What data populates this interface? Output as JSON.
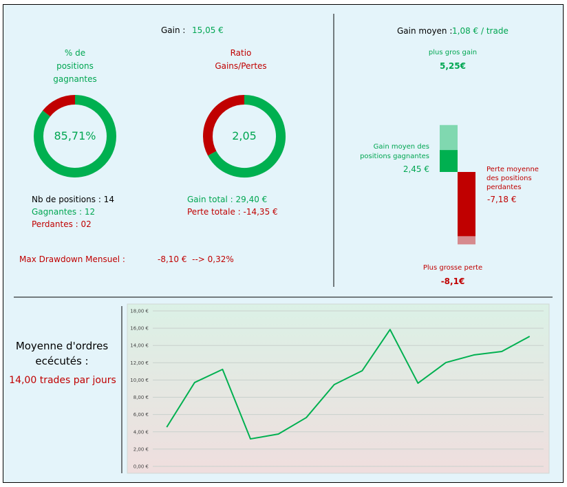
{
  "summary": {
    "gain_label": "Gain :",
    "gain_value": "15,05 €",
    "stats": [
      "Nb de positions : 14",
      "Gagnantes : 12",
      "Perdantes : 02",
      "Gain total : 29,40 €",
      "Perte totale : -14,35 €"
    ],
    "drawdown_label": "Max Drawdown Mensuel :",
    "drawdown_value": "-8,10 €  --> 0,32%",
    "avg_gain_label": "Gain moyen :",
    "avg_gain_value": "1,08 € / trade",
    "orders_label": "Moyenne d'ordres ecécutés :",
    "orders_value": "14,00 trades par jours"
  },
  "chart_data": [
    {
      "type": "pie",
      "donut": true,
      "title": [
        "% de",
        "positions",
        "gagnantes"
      ],
      "title_color": "#00a651",
      "center_label": "85,71%",
      "values": [
        85.71,
        14.29
      ],
      "colors": [
        "#00b050",
        "#c00000"
      ]
    },
    {
      "type": "pie",
      "donut": true,
      "title": [
        "Ratio",
        "Gains/Pertes"
      ],
      "title_color": "#c00000",
      "center_label": "2,05",
      "values": [
        67.2,
        32.8
      ],
      "colors": [
        "#00b050",
        "#c00000"
      ]
    },
    {
      "type": "floating_bar",
      "series": [
        {
          "name": "plus gros gain",
          "values": [
            5.25
          ],
          "value_labels": [
            "5,25€"
          ],
          "color": "#80d8b0"
        },
        {
          "name": "Gain moyen des positions gagnantes",
          "values": [
            2.45
          ],
          "value_labels": [
            "2,45 €"
          ],
          "color": "#00b050"
        },
        {
          "name": "Plus grosse perte",
          "values": [
            -8.1
          ],
          "value_labels": [
            "-8,1€"
          ],
          "color": "#d68a8e"
        },
        {
          "name": "Perte moyenne des positions perdantes",
          "values": [
            -7.18
          ],
          "value_labels": [
            "-7,18 €"
          ],
          "color": "#c00000"
        }
      ]
    },
    {
      "type": "line",
      "categories": [
        null,
        null,
        null,
        null,
        null,
        null,
        null,
        null,
        null,
        null,
        null,
        null,
        null,
        null
      ],
      "values": [
        4.54,
        9.71,
        11.23,
        3.18,
        3.74,
        5.65,
        9.47,
        11.07,
        15.84,
        9.63,
        12.02,
        12.9,
        13.3,
        15.05
      ],
      "color": "#00b050",
      "ylim": [
        0,
        18
      ],
      "grid": true,
      "yticks": [
        {
          "value": 0,
          "label": "0,00 €"
        },
        {
          "value": 2,
          "label": "2,00 €"
        },
        {
          "value": 4,
          "label": "4,00 €"
        },
        {
          "value": 6,
          "label": "6,00 €"
        },
        {
          "value": 8,
          "label": "8,00 €"
        },
        {
          "value": 10,
          "label": "10,00 €"
        },
        {
          "value": 12,
          "label": "12,00 €"
        },
        {
          "value": 14,
          "label": "14,00 €"
        },
        {
          "value": 16,
          "label": "16,00 €"
        },
        {
          "value": 18,
          "label": "18,00 €"
        }
      ]
    }
  ]
}
